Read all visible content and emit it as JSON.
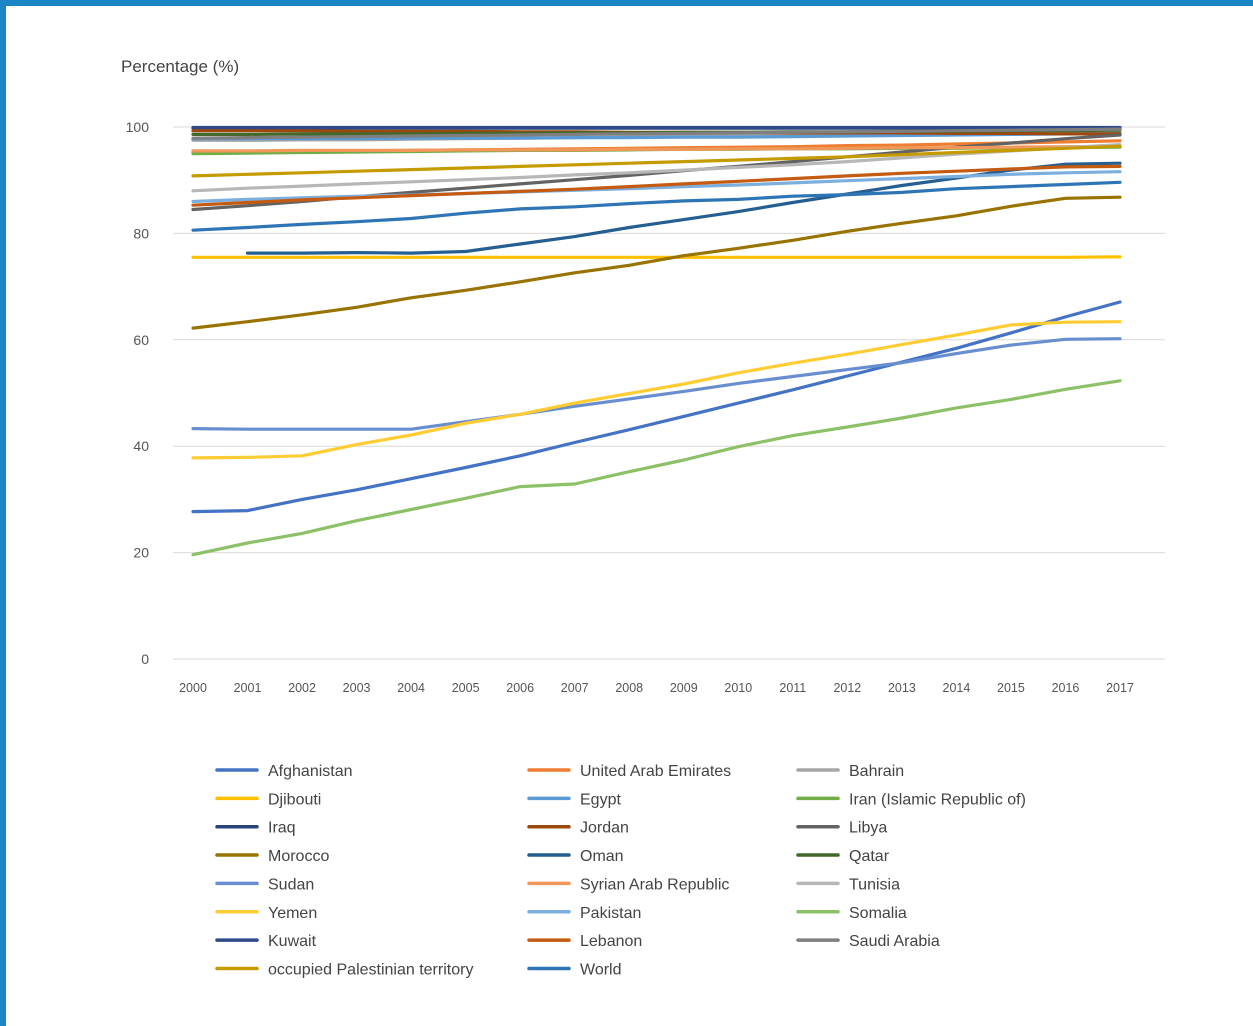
{
  "chart_data": {
    "type": "line",
    "title": "",
    "xlabel": "",
    "ylabel": "Percentage (%)",
    "ylim": [
      0,
      100
    ],
    "yticks": [
      0,
      20,
      40,
      60,
      80,
      100
    ],
    "grid": true,
    "legend_position": "bottom",
    "x": [
      "2000",
      "2001",
      "2002",
      "2003",
      "2004",
      "2005",
      "2006",
      "2007",
      "2008",
      "2009",
      "2010",
      "2011",
      "2012",
      "2013",
      "2014",
      "2015",
      "2016",
      "2017"
    ],
    "series": [
      {
        "name": "Afghanistan",
        "color": "#4472c4",
        "values": [
          27.7,
          27.9,
          30.0,
          31.8,
          33.9,
          36.0,
          38.2,
          40.7,
          43.1,
          45.6,
          48.1,
          50.6,
          53.2,
          55.8,
          58.4,
          61.3,
          64.3,
          67.1
        ]
      },
      {
        "name": "United Arab Emirates",
        "color": "#ed7d31",
        "values": [
          95.2,
          95.3,
          95.4,
          95.5,
          95.6,
          95.7,
          95.8,
          95.9,
          96.0,
          96.1,
          96.2,
          96.3,
          96.5,
          96.6,
          96.8,
          97.0,
          97.2,
          97.4
        ]
      },
      {
        "name": "Bahrain",
        "color": "#a5a5a5",
        "values": [
          97.5,
          97.5,
          97.6,
          97.6,
          97.7,
          97.8,
          97.9,
          98.0,
          98.1,
          98.3,
          98.4,
          98.6,
          98.7,
          98.9,
          99.1,
          99.3,
          99.5,
          99.7
        ]
      },
      {
        "name": "Djibouti",
        "color": "#ffc000",
        "values": [
          75.5,
          75.5,
          75.5,
          75.5,
          75.5,
          75.5,
          75.5,
          75.5,
          75.5,
          75.5,
          75.5,
          75.5,
          75.5,
          75.5,
          75.5,
          75.5,
          75.5,
          75.6
        ]
      },
      {
        "name": "Egypt",
        "color": "#5b9bd5",
        "values": [
          97.8,
          97.8,
          97.8,
          97.8,
          97.9,
          97.9,
          97.9,
          98.0,
          98.0,
          98.1,
          98.1,
          98.2,
          98.3,
          98.4,
          98.5,
          98.6,
          98.7,
          98.8
        ]
      },
      {
        "name": "Iran (Islamic Republic of)",
        "color": "#70ad47",
        "values": [
          95.0,
          95.1,
          95.2,
          95.3,
          95.4,
          95.5,
          95.6,
          95.6,
          95.7,
          95.8,
          95.8,
          95.9,
          95.9,
          96.0,
          96.0,
          96.1,
          96.1,
          96.2
        ]
      },
      {
        "name": "Iraq",
        "color": "#264478",
        "values": [
          99.8,
          99.8,
          99.8,
          99.8,
          99.8,
          99.8,
          99.8,
          99.8,
          99.8,
          99.8,
          99.8,
          99.8,
          99.8,
          99.8,
          99.8,
          99.8,
          99.8,
          99.8
        ]
      },
      {
        "name": "Jordan",
        "color": "#9e480e",
        "values": [
          99.3,
          99.3,
          99.3,
          99.2,
          99.2,
          99.2,
          99.1,
          99.1,
          99.0,
          99.0,
          99.0,
          98.9,
          98.9,
          98.9,
          98.8,
          98.8,
          98.7,
          98.7
        ]
      },
      {
        "name": "Libya",
        "color": "#636363",
        "values": [
          84.5,
          85.2,
          86.0,
          86.9,
          87.7,
          88.5,
          89.3,
          90.1,
          90.9,
          91.8,
          92.6,
          93.5,
          94.4,
          95.3,
          96.2,
          97.0,
          97.8,
          98.5
        ]
      },
      {
        "name": "Morocco",
        "color": "#997300",
        "values": [
          62.2,
          63.4,
          64.7,
          66.1,
          67.9,
          69.3,
          70.9,
          72.6,
          74.0,
          75.8,
          77.2,
          78.7,
          80.4,
          81.9,
          83.3,
          85.1,
          86.6,
          86.8
        ]
      },
      {
        "name": "Oman",
        "color": "#255e91",
        "values": [
          null,
          76.3,
          76.3,
          76.4,
          76.3,
          76.6,
          78.0,
          79.4,
          81.1,
          82.6,
          84.1,
          85.8,
          87.4,
          89.0,
          90.4,
          91.9,
          93.0,
          93.2
        ]
      },
      {
        "name": "Qatar",
        "color": "#43682b",
        "values": [
          98.6,
          98.6,
          98.7,
          98.7,
          98.7,
          98.8,
          98.8,
          98.9,
          98.9,
          99.0,
          99.0,
          99.1,
          99.1,
          99.2,
          99.2,
          99.3,
          99.3,
          99.4
        ]
      },
      {
        "name": "Sudan",
        "color": "#698ed0",
        "values": [
          43.3,
          43.2,
          43.2,
          43.2,
          43.2,
          44.6,
          46.0,
          47.5,
          48.9,
          50.3,
          51.8,
          53.1,
          54.4,
          55.7,
          57.4,
          59.0,
          60.1,
          60.2
        ]
      },
      {
        "name": "Syrian Arab Republic",
        "color": "#f1975a",
        "values": [
          95.5,
          95.5,
          95.6,
          95.6,
          95.6,
          95.7,
          95.7,
          95.7,
          95.8,
          95.8,
          95.9,
          95.9,
          96.0,
          96.1,
          96.1,
          96.2,
          96.3,
          96.4
        ]
      },
      {
        "name": "Tunisia",
        "color": "#b7b7b7",
        "values": [
          88.0,
          88.5,
          88.9,
          89.3,
          89.7,
          90.1,
          90.5,
          91.0,
          91.4,
          91.9,
          92.4,
          92.9,
          93.5,
          94.2,
          94.9,
          95.5,
          96.1,
          96.7
        ]
      },
      {
        "name": "Yemen",
        "color": "#ffcd33",
        "values": [
          37.8,
          37.9,
          38.2,
          40.3,
          42.1,
          44.3,
          46.0,
          48.1,
          49.9,
          51.7,
          53.8,
          55.6,
          57.3,
          59.1,
          60.9,
          62.8,
          63.3,
          63.4
        ]
      },
      {
        "name": "Pakistan",
        "color": "#7cafdd",
        "values": [
          86.0,
          86.4,
          86.7,
          87.0,
          87.2,
          87.5,
          87.8,
          88.1,
          88.4,
          88.8,
          89.1,
          89.5,
          89.9,
          90.3,
          90.7,
          91.1,
          91.4,
          91.6
        ]
      },
      {
        "name": "Somalia",
        "color": "#8cc168",
        "values": [
          19.6,
          21.8,
          23.6,
          26.0,
          28.1,
          30.2,
          32.4,
          32.9,
          35.2,
          37.4,
          39.9,
          42.0,
          43.6,
          45.3,
          47.2,
          48.8,
          50.7,
          52.3
        ]
      },
      {
        "name": "Kuwait",
        "color": "#2e4a8a",
        "values": [
          99.9,
          99.9,
          99.9,
          99.9,
          99.9,
          99.9,
          99.9,
          99.9,
          99.9,
          99.9,
          99.9,
          99.9,
          99.9,
          99.9,
          99.9,
          99.9,
          99.9,
          99.9
        ]
      },
      {
        "name": "Lebanon",
        "color": "#c55a11",
        "values": [
          85.3,
          85.8,
          86.3,
          86.7,
          87.1,
          87.5,
          87.9,
          88.3,
          88.8,
          89.3,
          89.8,
          90.3,
          90.8,
          91.3,
          91.7,
          92.1,
          92.5,
          92.6
        ]
      },
      {
        "name": "Saudi Arabia",
        "color": "#7f7f7f",
        "values": [
          97.9,
          98.0,
          98.1,
          98.2,
          98.3,
          98.4,
          98.5,
          98.6,
          98.7,
          98.8,
          98.9,
          99.0,
          99.1,
          99.2,
          99.3,
          99.4,
          99.5,
          99.6
        ]
      },
      {
        "name": "occupied Palestinian territory",
        "color": "#c59b00",
        "values": [
          90.8,
          91.1,
          91.4,
          91.7,
          92.0,
          92.3,
          92.6,
          92.9,
          93.2,
          93.5,
          93.8,
          94.1,
          94.4,
          94.8,
          95.2,
          95.6,
          96.0,
          96.4
        ]
      },
      {
        "name": "World",
        "color": "#2e75b6",
        "values": [
          80.6,
          81.1,
          81.7,
          82.2,
          82.8,
          83.8,
          84.6,
          85.0,
          85.6,
          86.1,
          86.4,
          87.0,
          87.3,
          87.7,
          88.4,
          88.8,
          89.2,
          89.6
        ]
      }
    ]
  }
}
